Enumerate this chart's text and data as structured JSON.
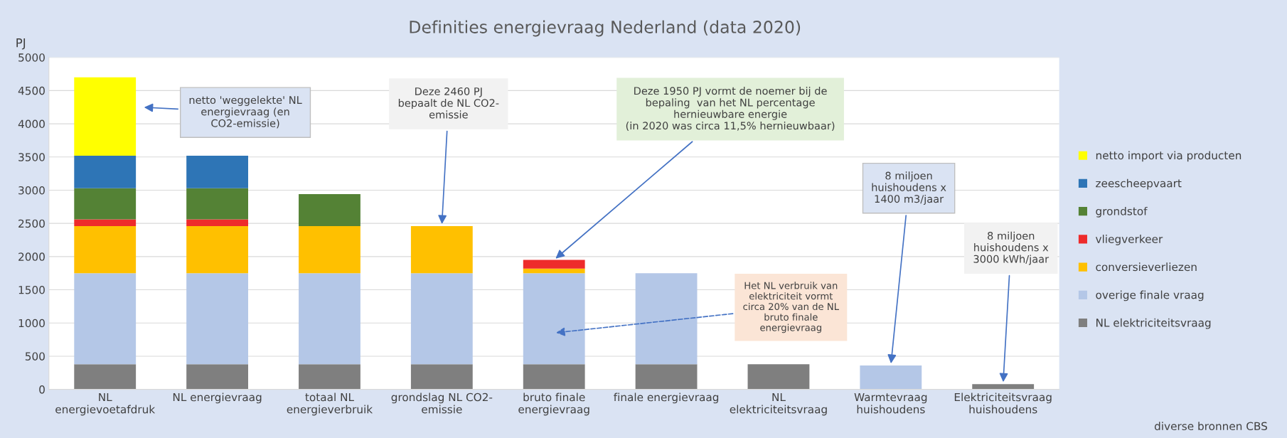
{
  "chart_data": {
    "type": "bar",
    "stacked": true,
    "title": "Definities energievraag Nederland (data 2020)",
    "ylabel": "PJ",
    "categories": [
      "NL\nenergievoetafdruk",
      "NL energievraag",
      "totaal NL\nenergieverbruik",
      "grondslag NL CO2-\nemissie",
      "bruto finale\nenergievraag",
      "finale energievraag",
      "NL\nelektriciteitsvraag",
      "Warmtevraag\nhuishoudens",
      "Elektriciteitsvraag\nhuishoudens"
    ],
    "series": [
      {
        "name": "NL elektriciteitsvraag",
        "color": "#7f7f7f",
        "values": [
          380,
          380,
          380,
          380,
          380,
          380,
          380,
          null,
          80
        ]
      },
      {
        "name": "overige finale vraag",
        "color": "#b4c7e7",
        "values": [
          1370,
          1370,
          1370,
          1370,
          1370,
          1370,
          null,
          360,
          null
        ]
      },
      {
        "name": "conversieverliezen",
        "color": "#ffc000",
        "values": [
          710,
          710,
          710,
          710,
          70,
          null,
          null,
          null,
          null
        ]
      },
      {
        "name": "vliegverkeer",
        "color": "#ee2b2b",
        "values": [
          100,
          100,
          null,
          null,
          130,
          null,
          null,
          null,
          null
        ]
      },
      {
        "name": "grondstof",
        "color": "#548235",
        "values": [
          470,
          470,
          480,
          null,
          null,
          null,
          null,
          null,
          null
        ]
      },
      {
        "name": "zeescheepvaart",
        "color": "#2e75b6",
        "values": [
          490,
          490,
          null,
          null,
          null,
          null,
          null,
          null,
          null
        ]
      },
      {
        "name": "netto import via producten",
        "color": "#ffff00",
        "values": [
          1180,
          null,
          null,
          null,
          null,
          null,
          null,
          null,
          null
        ]
      }
    ],
    "ylim": [
      0,
      5000
    ],
    "yticks": [
      0,
      500,
      1000,
      1500,
      2000,
      2500,
      3000,
      3500,
      4000,
      4500,
      5000
    ],
    "grid": "y",
    "legend": "right",
    "annotations": [
      "netto 'weggelekte' NL\nenergievraag (en\nCO2-emissie)",
      {
        "text": "Deze 2460 PJ\nbepaalt de NL CO2-\nemissie",
        "x": "grondslag NL CO2-\nemissie",
        "y": 2460
      },
      {
        "text": "Deze 1950 PJ vormt de noemer bij de\nbepaling  van het NL percentage\nhernieuwbare energie\n(in 2020 was circa 11,5% hernieuwbaar)",
        "x": "bruto finale\nenergievraag",
        "y": 1950
      },
      "Het NL verbruik van\nelektriciteit vormt\ncirca 20% van de NL\nbruto finale\nenergievraag",
      {
        "text": "8 miljoen\nhuishoudens x\n1400 m3/jaar",
        "x": "Warmtevraag\nhuishoudens",
        "y": 360
      },
      {
        "text": "8 miljoen\nhuishoudens x\n3000 kWh/jaar",
        "x": "Elektriciteitsvraag\nhuishoudens",
        "y": 80
      },
      "diverse bronnen CBS"
    ]
  }
}
